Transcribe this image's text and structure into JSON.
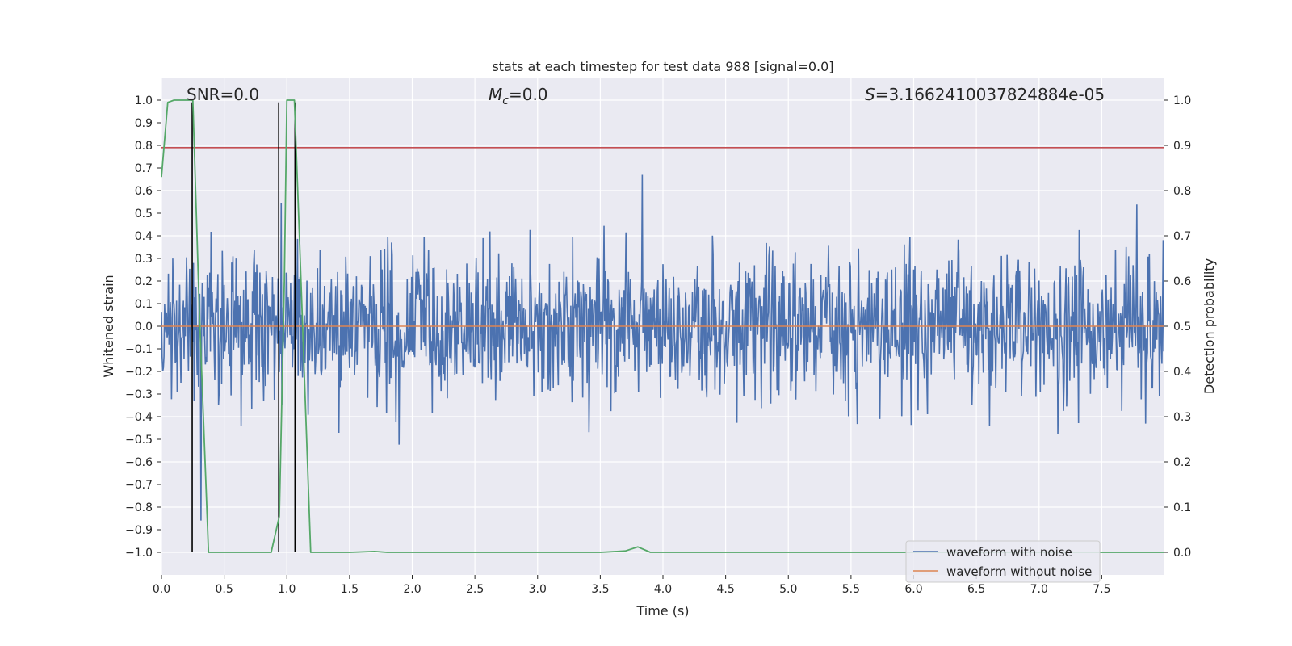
{
  "chart_data": {
    "type": "line",
    "title": "stats at each timestep for test data 988 [signal=0.0]",
    "xlabel": "Time (s)",
    "ylabel": "Whitened strain",
    "ylabel_right": "Detection probability",
    "xlim": [
      0.0,
      8.0
    ],
    "ylim": [
      -1.1,
      1.1
    ],
    "ylim_right": [
      -0.05,
      1.05
    ],
    "x_ticks": [
      0.0,
      0.5,
      1.0,
      1.5,
      2.0,
      2.5,
      3.0,
      3.5,
      4.0,
      4.5,
      5.0,
      5.5,
      6.0,
      6.5,
      7.0,
      7.5
    ],
    "x_tick_labels": [
      "0.0",
      "0.5",
      "1.0",
      "1.5",
      "2.0",
      "2.5",
      "3.0",
      "3.5",
      "4.0",
      "4.5",
      "5.0",
      "5.5",
      "6.0",
      "6.5",
      "7.0",
      "7.5"
    ],
    "y_ticks": [
      1.0,
      0.9,
      0.8,
      0.7,
      0.6,
      0.5,
      0.4,
      0.3,
      0.2,
      0.1,
      0.0,
      -0.1,
      -0.2,
      -0.3,
      -0.4,
      -0.5,
      -0.6,
      -0.7,
      -0.8,
      -0.9,
      -1.0
    ],
    "y_tick_labels": [
      "1.0",
      "0.9",
      "0.8",
      "0.7",
      "0.6",
      "0.5",
      "0.4",
      "0.3",
      "0.2",
      "0.1",
      "0.0",
      "−0.1",
      "−0.2",
      "−0.3",
      "−0.4",
      "−0.5",
      "−0.6",
      "−0.7",
      "−0.8",
      "−0.9",
      "−1.0"
    ],
    "y_right_ticks": [
      1.0,
      0.9,
      0.8,
      0.7,
      0.6,
      0.5,
      0.4,
      0.3,
      0.2,
      0.1,
      0.0
    ],
    "y_right_tick_labels": [
      "1.0",
      "0.9",
      "0.8",
      "0.7",
      "0.6",
      "0.5",
      "0.4",
      "0.3",
      "0.2",
      "0.1",
      "0.0"
    ],
    "annotations": {
      "snr": "SNR=0.0",
      "mc_symbol": "M",
      "mc_sub": "c",
      "mc_value": "=0.0",
      "s_symbol": "S",
      "s_value": "=3.1662410037824884e-05"
    },
    "legend": {
      "placement": "lower-right",
      "entries": [
        "waveform with noise",
        "waveform without noise"
      ]
    },
    "threshold": {
      "value": 0.79,
      "color": "#c44e52"
    },
    "vertical_lines": [
      0.245,
      0.935,
      1.065
    ],
    "series": [
      {
        "name": "waveform with noise",
        "color": "#4c72b0",
        "note": "dense whitened noise, approx. amplitude envelope ±0.55 with spikes to ±1.0; sampled at 5 ms",
        "x_start": 0.0,
        "x_end": 7.995,
        "dt": 0.005,
        "amplitude": 0.46,
        "seed": 988
      },
      {
        "name": "waveform without noise",
        "color": "#dd8452",
        "x": [
          0.0,
          8.0
        ],
        "y": [
          0.0,
          0.0
        ]
      },
      {
        "name": "detection probability",
        "axis": "right",
        "color": "#55a868",
        "x": [
          0.0,
          0.05,
          0.1,
          0.2,
          0.25,
          0.3,
          0.375,
          0.45,
          0.6,
          0.75,
          0.875,
          0.94,
          0.98,
          1.0,
          1.06,
          1.1,
          1.19,
          1.3,
          1.5,
          1.7,
          1.8,
          2.0,
          2.5,
          3.0,
          3.5,
          3.7,
          3.8,
          3.9,
          4.0,
          5.0,
          6.0,
          7.0,
          8.0
        ],
        "y": [
          0.83,
          0.995,
          1.0,
          1.0,
          1.0,
          0.55,
          0.0,
          0.0,
          0.0,
          0.0,
          0.0,
          0.08,
          0.6,
          1.0,
          1.0,
          0.7,
          0.0,
          0.0,
          0.0,
          0.002,
          0.0,
          0.0,
          0.0,
          0.0,
          0.0,
          0.003,
          0.012,
          0.0,
          0.0,
          0.0,
          0.0,
          0.0,
          0.0
        ]
      }
    ]
  }
}
